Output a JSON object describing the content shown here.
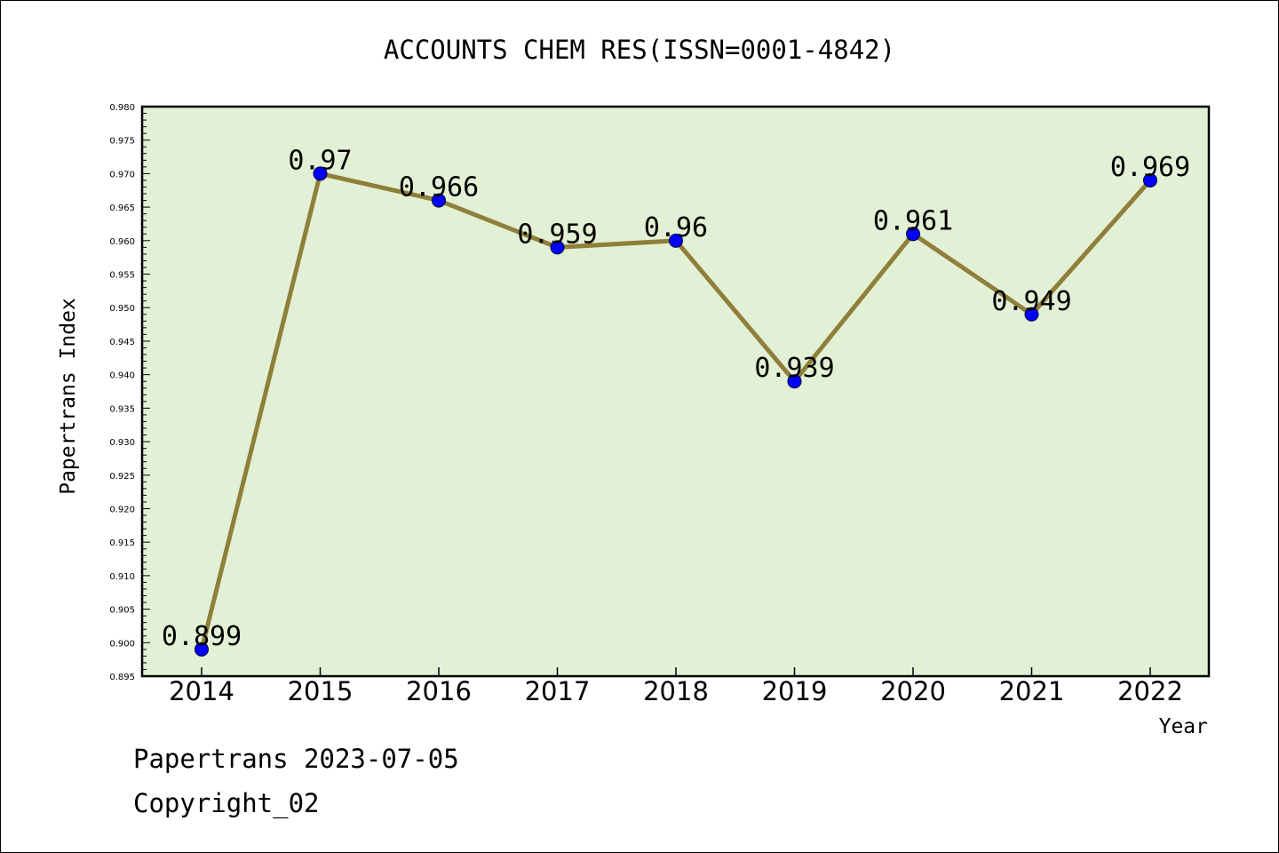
{
  "chart_data": {
    "type": "line",
    "title": "ACCOUNTS CHEM RES(ISSN=0001-4842)",
    "xlabel": "Year",
    "ylabel": "Papertrans Index",
    "categories": [
      "2014",
      "2015",
      "2016",
      "2017",
      "2018",
      "2019",
      "2020",
      "2021",
      "2022"
    ],
    "series": [
      {
        "values": [
          0.899,
          0.97,
          0.966,
          0.959,
          0.96,
          0.939,
          0.961,
          0.949,
          0.969
        ],
        "data_labels": [
          "0.899",
          "0.97",
          "0.966",
          "0.959",
          "0.96",
          "0.939",
          "0.961",
          "0.949",
          "0.969"
        ]
      }
    ],
    "ylim": [
      0.895,
      0.98
    ],
    "y_ticks": [
      "0.895",
      "0.900",
      "0.905",
      "0.910",
      "0.915",
      "0.920",
      "0.925",
      "0.930",
      "0.935",
      "0.940",
      "0.945",
      "0.950",
      "0.955",
      "0.960",
      "0.965",
      "0.970",
      "0.975",
      "0.980"
    ],
    "grid": false,
    "legend": "none",
    "colors": {
      "plot_background": "#e2f0d5",
      "line": "#8f7f3a",
      "marker": "#0000ff"
    }
  },
  "footer": {
    "line1": "Papertrans 2023-07-05",
    "line2": "Copyright_02"
  }
}
